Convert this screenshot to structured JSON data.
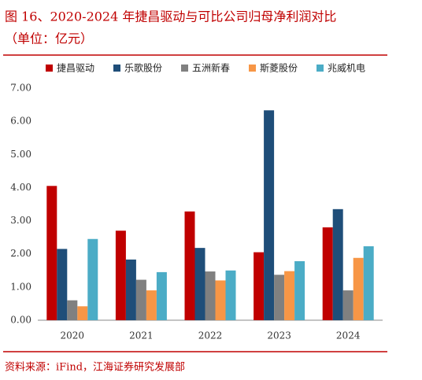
{
  "chart_data": {
    "type": "bar",
    "title": "图 16、2020-2024 年捷昌驱动与可比公司归母净利润对比",
    "subtitle": "（单位：亿元）",
    "source": "资料来源：iFind，江海证券研究发展部",
    "categories": [
      "2020",
      "2021",
      "2022",
      "2023",
      "2024"
    ],
    "series": [
      {
        "name": "捷昌驱动",
        "color": "#c00000",
        "values": [
          4.05,
          2.7,
          3.28,
          2.05,
          2.8
        ]
      },
      {
        "name": "乐歌股份",
        "color": "#1f4e79",
        "values": [
          2.15,
          1.83,
          2.18,
          6.33,
          3.35
        ]
      },
      {
        "name": "五洲新春",
        "color": "#808080",
        "values": [
          0.6,
          1.22,
          1.47,
          1.37,
          0.9
        ]
      },
      {
        "name": "斯菱股份",
        "color": "#f79646",
        "values": [
          0.42,
          0.9,
          1.2,
          1.48,
          1.88
        ]
      },
      {
        "name": "兆威机电",
        "color": "#4bacc6",
        "values": [
          2.45,
          1.45,
          1.5,
          1.78,
          2.23
        ]
      }
    ],
    "ylim": [
      0,
      7
    ],
    "yticks": [
      {
        "value": 0,
        "label": "0.00"
      },
      {
        "value": 1,
        "label": "1.00"
      },
      {
        "value": 2,
        "label": "2.00"
      },
      {
        "value": 3,
        "label": "3.00"
      },
      {
        "value": 4,
        "label": "4.00"
      },
      {
        "value": 5,
        "label": "5.00"
      },
      {
        "value": 6,
        "label": "6.00"
      },
      {
        "value": 7,
        "label": "7.00"
      }
    ],
    "grid": false
  }
}
